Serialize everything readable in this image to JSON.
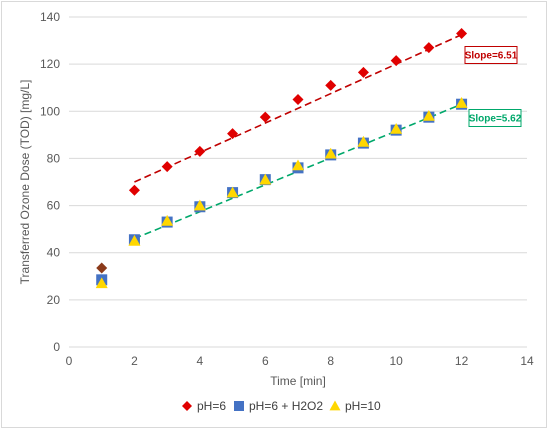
{
  "chart_data": {
    "type": "scatter",
    "title": "",
    "xlabel": "Time [min]",
    "ylabel": "Transferred Ozone Dose (TOD) [mg/L]",
    "xlim": [
      0,
      14
    ],
    "ylim": [
      0,
      140
    ],
    "x_ticks": [
      0,
      2,
      4,
      6,
      8,
      10,
      12,
      14
    ],
    "y_ticks": [
      0,
      20,
      40,
      60,
      80,
      100,
      120,
      140
    ],
    "grid": "horizontal",
    "legend_position": "bottom",
    "series": [
      {
        "name": "pH=6",
        "marker": "diamond",
        "color": "#e00000",
        "first_point_color": "#8b3a1a",
        "x": [
          1,
          2,
          3,
          4,
          5,
          6,
          7,
          8,
          9,
          10,
          11,
          12
        ],
        "y": [
          33.5,
          66.5,
          76.5,
          83,
          90.5,
          97.5,
          105,
          111,
          116.5,
          121.5,
          127,
          133
        ]
      },
      {
        "name": "pH=6 + H2O2",
        "marker": "square",
        "color": "#4472c4",
        "x": [
          1,
          2,
          3,
          4,
          5,
          6,
          7,
          8,
          9,
          10,
          11,
          12
        ],
        "y": [
          28.5,
          45.5,
          53,
          59.5,
          65.5,
          71,
          76,
          81.5,
          86.5,
          92,
          97.5,
          103
        ]
      },
      {
        "name": "pH=10",
        "marker": "triangle",
        "color": "#ffd700",
        "x": [
          1,
          2,
          3,
          4,
          5,
          6,
          7,
          8,
          9,
          10,
          11,
          12
        ],
        "y": [
          27,
          45,
          53.5,
          60,
          65.5,
          71,
          77,
          82,
          87,
          92.5,
          98,
          103.5
        ]
      }
    ],
    "trendlines": [
      {
        "series": "pH=6",
        "color": "#c00000",
        "x": [
          2,
          12
        ],
        "y": [
          70,
          132.5
        ]
      },
      {
        "series": "pH=6 + H2O2",
        "color": "#00a86b",
        "x": [
          2,
          12
        ],
        "y": [
          46,
          103
        ]
      }
    ],
    "annotations": [
      {
        "text": "Slope=6.51",
        "color": "#c00000"
      },
      {
        "text": "Slope=5.62",
        "color": "#00a86b"
      }
    ]
  }
}
